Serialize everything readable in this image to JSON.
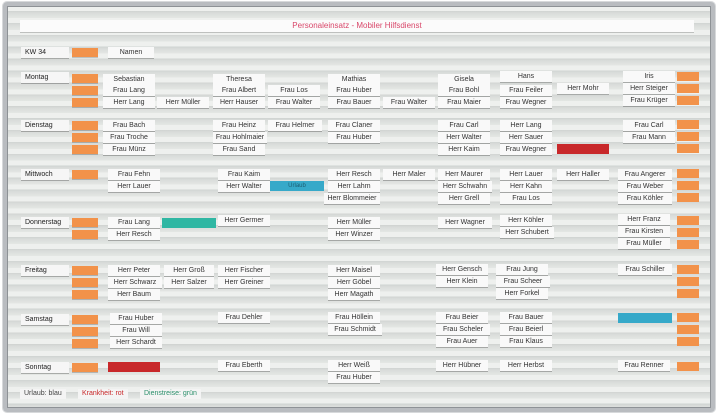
{
  "board": {
    "title": "Personaleinsatz - Mobiler Hilfsdienst",
    "week": "KW 34",
    "names_label": "Namen",
    "colors": {
      "urlaub": "#36a9c9",
      "krankheit": "#c8282a",
      "dienstreise": "#2fb7a3",
      "tab": "#f2924a"
    }
  },
  "staff": [
    "Sebastian",
    "Theresa",
    "Mathias",
    "Gisela",
    "Hans",
    "Iris"
  ],
  "days": {
    "montag": "Montag",
    "dienstag": "Dienstag",
    "mittwoch": "Mittwoch",
    "donnerstag": "Donnerstag",
    "freitag": "Freitag",
    "samstag": "Samstag",
    "sonntag": "Sonntag"
  },
  "cards": {
    "mo1": "Frau Lang",
    "mo2": "Herr Lang",
    "mo3": "Herr Müller",
    "mo4": "Frau Albert",
    "mo5": "Herr Hauser",
    "mo6": "Frau Los",
    "mo7": "Frau Walter",
    "mo8": "Frau Huber",
    "mo9": "Frau Bauer",
    "mo10": "Frau Walter",
    "mo11": "Frau Bohl",
    "mo12": "Frau Maier",
    "mo13": "Frau Feiler",
    "mo14": "Frau Wegner",
    "mo15": "Herr Mohr",
    "mo16": "Herr Steiger",
    "mo17": "Frau Krüger",
    "di1": "Frau Bach",
    "di2": "Frau Troche",
    "di3": "Frau Münz",
    "di4": "Frau Heinz",
    "di5": "Frau Hohlmaier",
    "di6": "Frau Sand",
    "di7": "Frau Helmer",
    "di8": "Frau Claner",
    "di9": "Frau Huber",
    "di10": "Frau Carl",
    "di11": "Herr Walter",
    "di12": "Herr Kaim",
    "di13": "Herr Lang",
    "di14": "Herr Sauer",
    "di15": "Frau Wegner",
    "di16": "Frau Carl",
    "di17": "Frau Mann",
    "mi1": "Frau Fehn",
    "mi2": "Herr Lauer",
    "mi3": "Frau Kaim",
    "mi4": "Herr Walter",
    "mi5": "Urlaub",
    "mi6": "Herr Resch",
    "mi7": "Herr Lahm",
    "mi8": "Herr Blommeier",
    "mi9": "Herr Maler",
    "mi10": "Herr Maurer",
    "mi11": "Herr Schwahn",
    "mi12": "Herr Grell",
    "mi13": "Herr Lauer",
    "mi14": "Herr Kahn",
    "mi15": "Frau Los",
    "mi16": "Herr Haller",
    "mi17": "Frau Angerer",
    "mi18": "Frau Weber",
    "mi19": "Frau Köhler",
    "do1": "Frau Lang",
    "do2": "Herr Resch",
    "do3": "Herr Germer",
    "do4": "Herr Müller",
    "do5": "Herr Winzer",
    "do6": "Herr Wagner",
    "do7": "Herr Köhler",
    "do8": "Herr Schubert",
    "do9": "Herr Franz",
    "do10": "Frau Kirsten",
    "do11": "Frau Müller",
    "fr1": "Herr Peter",
    "fr2": "Herr Schwarz",
    "fr3": "Herr Baum",
    "fr4": "Herr Groß",
    "fr5": "Herr Salzer",
    "fr6": "Herr Fischer",
    "fr7": "Herr Greiner",
    "fr8": "Herr Maisel",
    "fr9": "Herr Göbel",
    "fr10": "Herr Magath",
    "fr11": "Herr Gensch",
    "fr12": "Herr Klein",
    "fr13": "Frau Jung",
    "fr14": "Frau Scheer",
    "fr15": "Herr Forkel",
    "fr16": "Frau Schiller",
    "sa1": "Frau Huber",
    "sa2": "Frau Will",
    "sa3": "Herr Schardt",
    "sa4": "Frau Dehler",
    "sa5": "Frau Höllein",
    "sa6": "Frau Schmidt",
    "sa7": "Frau Beier",
    "sa8": "Frau Scheler",
    "sa9": "Frau Auer",
    "sa10": "Frau Bauer",
    "sa11": "Frau Beierl",
    "sa12": "Frau Klaus",
    "so1": "Frau Eberth",
    "so2": "Herr Weiß",
    "so3": "Frau Huber",
    "so4": "Herr Hübner",
    "so5": "Herr Herbst",
    "so6": "Frau Renner"
  },
  "legend": {
    "urlaub": "Urlaub: blau",
    "krankheit": "Krankheit: rot",
    "dienstreise": "Dienstreise: grün"
  }
}
